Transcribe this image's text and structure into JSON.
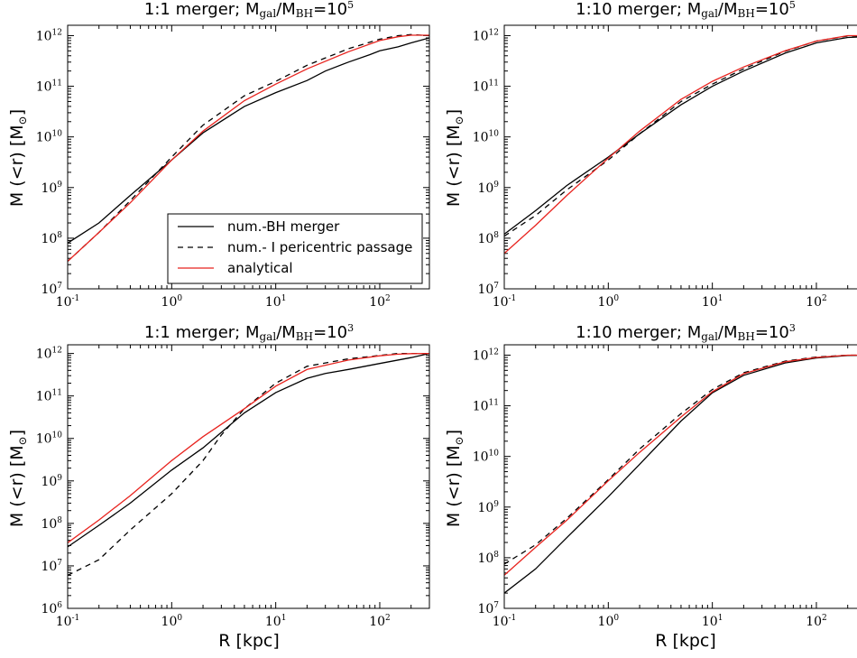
{
  "figure": {
    "ylabel_main": "M (<r) [M",
    "ylabel_sub": "⊙",
    "ylabel_tail": "]",
    "xlabel": "R [kpc]"
  },
  "legend": {
    "entries": [
      {
        "label": "num.-BH merger",
        "style": "solid",
        "color": "#000000"
      },
      {
        "label": "num.- I pericentric passage",
        "style": "dashed",
        "color": "#000000"
      },
      {
        "label": "analytical",
        "style": "solid",
        "color": "#e8231e"
      }
    ]
  },
  "colors": {
    "numeric": "#000000",
    "analytical": "#e8231e"
  },
  "chart_data": [
    {
      "type": "line",
      "title": {
        "prefix": "1:1 merger; M",
        "sub1": "gal",
        "mid": "/M",
        "sub2": "BH",
        "eq": "=10",
        "exp": "5"
      },
      "xscale": "log",
      "yscale": "log",
      "xlim": [
        0.1,
        300
      ],
      "ylim": [
        10000000.0,
        1600000000000.0
      ],
      "xticks": [
        0.1,
        1,
        10,
        100
      ],
      "yticks": [
        10000000.0,
        100000000.0,
        1000000000.0,
        10000000000.0,
        100000000000.0,
        1000000000000.0
      ],
      "series": [
        {
          "key": "bh",
          "x": [
            0.1,
            0.2,
            0.4,
            1,
            2,
            5,
            10,
            20,
            30,
            50,
            80,
            100,
            150,
            200,
            300
          ],
          "y": [
            80000000.0,
            200000000.0,
            700000000.0,
            3500000000.0,
            12000000000.0,
            40000000000.0,
            75000000000.0,
            130000000000.0,
            200000000000.0,
            300000000000.0,
            420000000000.0,
            500000000000.0,
            600000000000.0,
            720000000000.0,
            900000000000.0
          ]
        },
        {
          "key": "peri",
          "x": [
            0.1,
            0.2,
            0.4,
            1,
            2,
            5,
            10,
            20,
            50,
            100,
            150,
            200,
            250,
            300
          ],
          "y": [
            35000000.0,
            130000000.0,
            550000000.0,
            4000000000.0,
            17000000000.0,
            65000000000.0,
            125000000000.0,
            260000000000.0,
            550000000000.0,
            850000000000.0,
            1000000000000.0,
            1050000000000.0,
            1020000000000.0,
            1000000000000.0
          ]
        },
        {
          "key": "analytic",
          "x": [
            0.1,
            0.2,
            0.4,
            1,
            2,
            5,
            10,
            20,
            50,
            100,
            150,
            200,
            300
          ],
          "y": [
            35000000.0,
            130000000.0,
            500000000.0,
            3500000000.0,
            13000000000.0,
            52000000000.0,
            110000000000.0,
            220000000000.0,
            480000000000.0,
            800000000000.0,
            950000000000.0,
            1020000000000.0,
            1020000000000.0
          ]
        }
      ]
    },
    {
      "type": "line",
      "title": {
        "prefix": "1:10 merger; M",
        "sub1": "gal",
        "mid": "/M",
        "sub2": "BH",
        "eq": "=10",
        "exp": "5"
      },
      "xscale": "log",
      "yscale": "log",
      "xlim": [
        0.1,
        300
      ],
      "ylim": [
        10000000.0,
        1600000000000.0
      ],
      "xticks": [
        0.1,
        1,
        10,
        100
      ],
      "yticks": [
        10000000.0,
        100000000.0,
        1000000000.0,
        10000000000.0,
        100000000000.0,
        1000000000000.0
      ],
      "series": [
        {
          "key": "bh",
          "x": [
            0.1,
            0.2,
            0.4,
            1,
            2,
            5,
            10,
            20,
            50,
            100,
            200,
            300
          ],
          "y": [
            120000000.0,
            350000000.0,
            1100000000.0,
            4000000000.0,
            11500000000.0,
            43000000000.0,
            100000000000.0,
            200000000000.0,
            450000000000.0,
            720000000000.0,
            920000000000.0,
            950000000000.0
          ]
        },
        {
          "key": "peri",
          "x": [
            0.1,
            0.2,
            0.4,
            1,
            2,
            5,
            10,
            20,
            50,
            100,
            200,
            300
          ],
          "y": [
            110000000.0,
            280000000.0,
            900000000.0,
            3500000000.0,
            11500000000.0,
            50000000000.0,
            110000000000.0,
            220000000000.0,
            490000000000.0,
            780000000000.0,
            980000000000.0,
            980000000000.0
          ]
        },
        {
          "key": "analytic",
          "x": [
            0.1,
            0.2,
            0.4,
            1,
            2,
            5,
            10,
            20,
            50,
            100,
            200,
            300
          ],
          "y": [
            50000000.0,
            180000000.0,
            700000000.0,
            3800000000.0,
            13000000000.0,
            55000000000.0,
            125000000000.0,
            240000000000.0,
            500000000000.0,
            780000000000.0,
            1000000000000.0,
            1000000000000.0
          ]
        }
      ]
    },
    {
      "type": "line",
      "title": {
        "prefix": "1:1 merger; M",
        "sub1": "gal",
        "mid": "/M",
        "sub2": "BH",
        "eq": "=10",
        "exp": "3"
      },
      "xscale": "log",
      "yscale": "log",
      "xlim": [
        0.1,
        300
      ],
      "ylim": [
        1000000.0,
        1600000000000.0
      ],
      "xticks": [
        0.1,
        1,
        10,
        100
      ],
      "yticks": [
        1000000.0,
        10000000.0,
        100000000.0,
        1000000000.0,
        10000000000.0,
        100000000000.0,
        1000000000000.0
      ],
      "series": [
        {
          "key": "bh",
          "x": [
            0.1,
            0.2,
            0.4,
            1,
            2,
            5,
            10,
            20,
            30,
            50,
            100,
            200,
            300
          ],
          "y": [
            28000000.0,
            90000000.0,
            300000000.0,
            1800000000.0,
            6000000000.0,
            40000000000.0,
            120000000000.0,
            260000000000.0,
            340000000000.0,
            420000000000.0,
            580000000000.0,
            800000000000.0,
            1000000000000.0
          ]
        },
        {
          "key": "peri",
          "x": [
            0.1,
            0.2,
            0.4,
            1,
            2,
            3,
            5,
            10,
            20,
            50,
            100,
            150,
            200,
            300
          ],
          "y": [
            6000000.0,
            14000000.0,
            70000000.0,
            500000000.0,
            3000000000.0,
            12000000000.0,
            50000000000.0,
            200000000000.0,
            500000000000.0,
            750000000000.0,
            900000000000.0,
            1000000000000.0,
            1000000000000.0,
            1000000000000.0
          ]
        },
        {
          "key": "analytic",
          "x": [
            0.1,
            0.2,
            0.4,
            1,
            2,
            5,
            10,
            20,
            50,
            100,
            150,
            200,
            300
          ],
          "y": [
            35000000.0,
            120000000.0,
            450000000.0,
            3000000000.0,
            11000000000.0,
            50000000000.0,
            170000000000.0,
            420000000000.0,
            700000000000.0,
            880000000000.0,
            960000000000.0,
            990000000000.0,
            1000000000000.0
          ]
        }
      ]
    },
    {
      "type": "line",
      "title": {
        "prefix": "1:10 merger; M",
        "sub1": "gal",
        "mid": "/M",
        "sub2": "BH",
        "eq": "=10",
        "exp": "3"
      },
      "xscale": "log",
      "yscale": "log",
      "xlim": [
        0.1,
        300
      ],
      "ylim": [
        10000000.0,
        1600000000000.0
      ],
      "xticks": [
        0.1,
        1,
        10,
        100
      ],
      "yticks": [
        10000000.0,
        100000000.0,
        1000000000.0,
        10000000000.0,
        100000000000.0,
        1000000000000.0
      ],
      "series": [
        {
          "key": "bh",
          "x": [
            0.1,
            0.2,
            0.4,
            1,
            2,
            5,
            10,
            20,
            50,
            100,
            200,
            300
          ],
          "y": [
            20000000.0,
            60000000.0,
            250000000.0,
            1600000000.0,
            7000000000.0,
            50000000000.0,
            180000000000.0,
            400000000000.0,
            700000000000.0,
            880000000000.0,
            980000000000.0,
            1000000000000.0
          ]
        },
        {
          "key": "peri",
          "x": [
            0.1,
            0.2,
            0.4,
            1,
            2,
            5,
            10,
            20,
            50,
            100,
            200,
            300
          ],
          "y": [
            75000000.0,
            180000000.0,
            600000000.0,
            3500000000.0,
            14000000000.0,
            70000000000.0,
            210000000000.0,
            450000000000.0,
            760000000000.0,
            920000000000.0,
            1000000000000.0,
            1000000000000.0
          ]
        },
        {
          "key": "analytic",
          "x": [
            0.1,
            0.2,
            0.4,
            1,
            2,
            5,
            10,
            20,
            50,
            100,
            200,
            300
          ],
          "y": [
            45000000.0,
            160000000.0,
            550000000.0,
            3300000000.0,
            12000000000.0,
            60000000000.0,
            190000000000.0,
            430000000000.0,
            740000000000.0,
            900000000000.0,
            1000000000000.0,
            1000000000000.0
          ]
        }
      ]
    }
  ]
}
